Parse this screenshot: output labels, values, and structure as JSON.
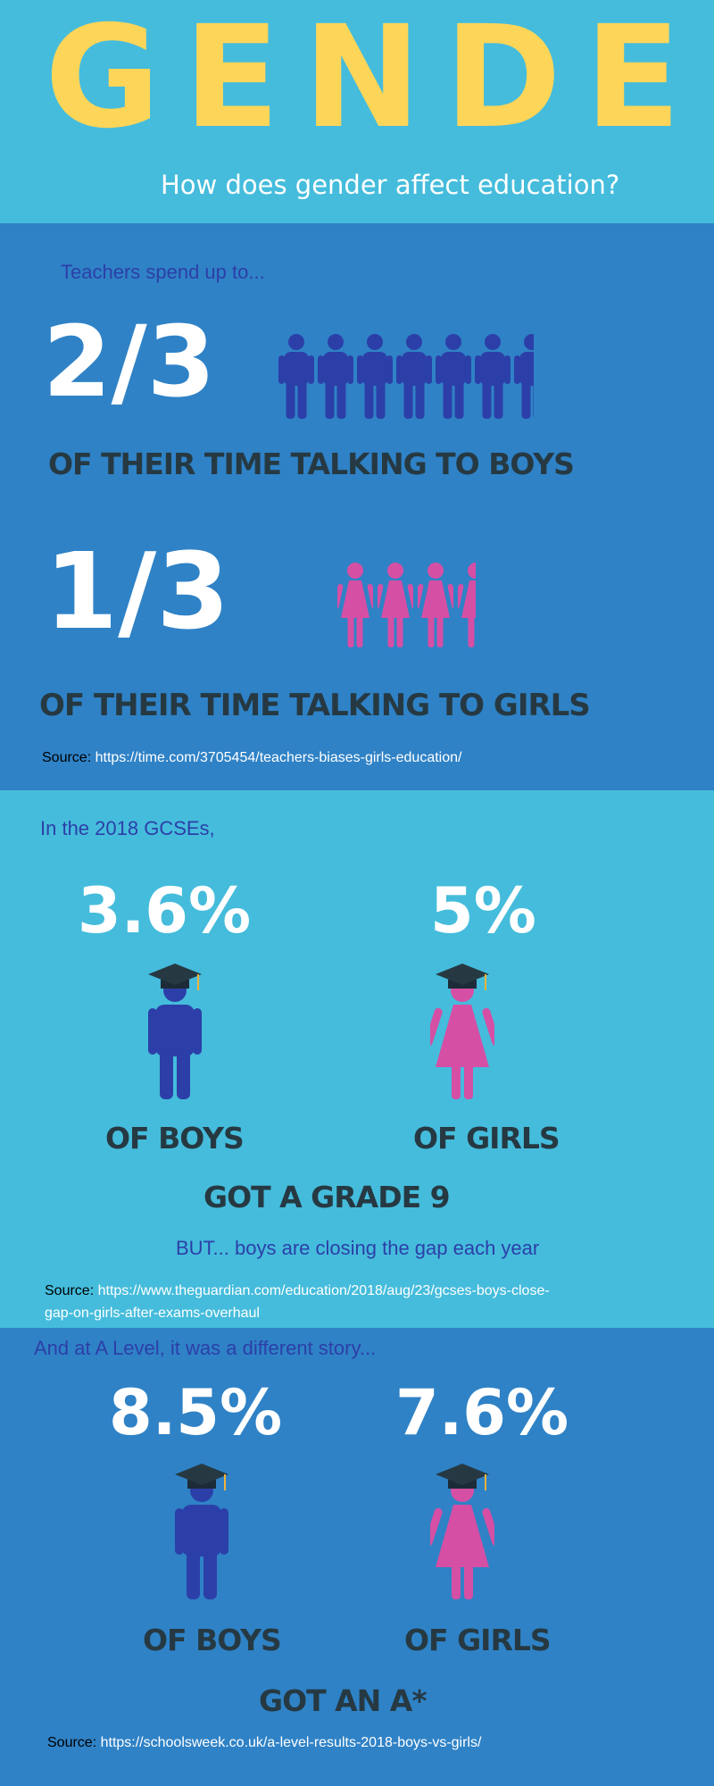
{
  "header": {
    "title": "GENDER",
    "subtitle": "How does gender affect education?"
  },
  "teachers": {
    "intro": "Teachers spend up to...",
    "boys_fraction": "2/3",
    "boys_caption": "OF THEIR TIME TALKING TO BOYS",
    "boys_icon": "male-figure-icon",
    "boys_icon_count": 6.5,
    "girls_fraction": "1/3",
    "girls_caption": "OF THEIR TIME TALKING TO GIRLS",
    "girls_icon": "female-figure-icon",
    "girls_icon_count": 3.5,
    "source_label": "Source:",
    "source_url": "https://time.com/3705454/teachers-biases-girls-education/"
  },
  "gcse": {
    "intro": "In the 2018 GCSEs,",
    "boys_percent": "3.6%",
    "girls_percent": "5%",
    "boys_caption": "OF BOYS",
    "girls_caption": "OF GIRLS",
    "result": "GOT A GRADE 9",
    "note": "BUT... boys are closing the gap each year",
    "source_label": "Source:",
    "source_url_line1": "https://www.theguardian.com/education/2018/aug/23/gcses-boys-close-",
    "source_url_line2": "gap-on-girls-after-exams-overhaul"
  },
  "alevel": {
    "intro": "And at A Level, it was a different story...",
    "boys_percent": "8.5%",
    "girls_percent": "7.6%",
    "boys_caption": "OF BOYS",
    "girls_caption": "OF GIRLS",
    "result": "GOT AN A*",
    "source_label": "Source:",
    "source_url": "https://schoolsweek.co.uk/a-level-results-2018-boys-vs-girls/"
  },
  "colors": {
    "yellow": "#fdd559",
    "light_blue": "#45bcdc",
    "mid_blue": "#2f82c6",
    "male_blue": "#2c3fa8",
    "female_pink": "#d54fa5",
    "dark_text": "#263942",
    "white": "#ffffff"
  }
}
